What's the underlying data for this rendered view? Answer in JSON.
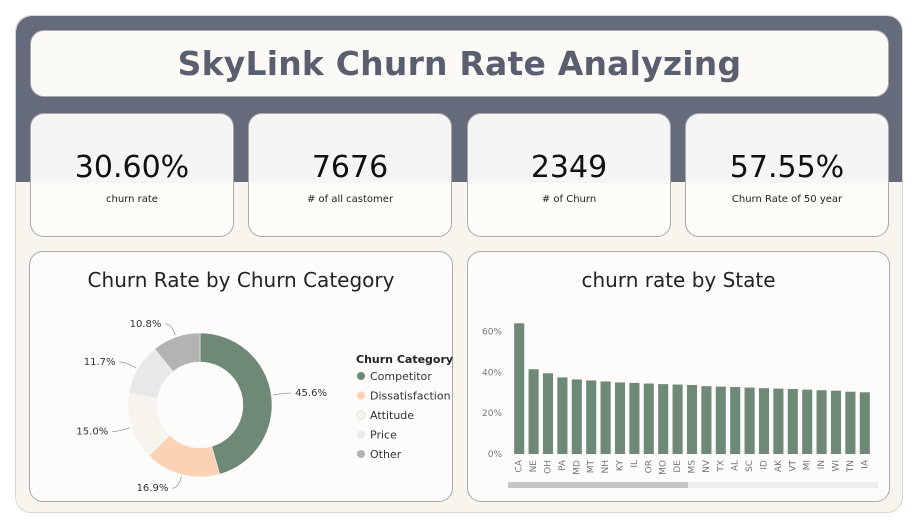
{
  "header": {
    "title": "SkyLink Churn Rate Analyzing"
  },
  "kpis": [
    {
      "value": "30.60%",
      "label": "churn rate"
    },
    {
      "value": "7676",
      "label": "# of all castomer"
    },
    {
      "value": "2349",
      "label": "# of Churn"
    },
    {
      "value": "57.55%",
      "label": "Churn Rate of 50 year"
    }
  ],
  "colors": {
    "band": "#656b7b",
    "competitor": "#6e8a77",
    "dissatisfaction": "#fcd2b5",
    "attitude": "#f7f4ee",
    "price": "#e8e8e8",
    "other": "#b3b3b3",
    "bar": "#6e8a77"
  },
  "chart_data": [
    {
      "type": "pie",
      "title": "Churn Rate by Churn Category",
      "legend_title": "Churn Category",
      "categories": [
        "Competitor",
        "Dissatisfaction",
        "Attitude",
        "Price",
        "Other"
      ],
      "values": [
        45.6,
        16.9,
        15.0,
        11.7,
        10.8
      ],
      "value_labels": [
        "45.6%",
        "16.9%",
        "15.0%",
        "11.7%",
        "10.8%"
      ],
      "legend_placement": "right"
    },
    {
      "type": "bar",
      "title": "churn rate by State",
      "categories": [
        "CA",
        "NE",
        "OH",
        "PA",
        "MD",
        "MT",
        "NH",
        "KY",
        "IL",
        "OR",
        "MO",
        "DE",
        "MS",
        "NV",
        "TX",
        "AL",
        "SC",
        "ID",
        "AK",
        "VT",
        "MI",
        "IN",
        "WI",
        "TN",
        "IA"
      ],
      "values": [
        64,
        41.5,
        39.5,
        37.5,
        36.5,
        36,
        35.5,
        35,
        34.8,
        34.5,
        34.2,
        34,
        33.8,
        33.2,
        33,
        32.8,
        32.5,
        32.2,
        32,
        31.8,
        31.5,
        31.2,
        31,
        30.5,
        30.2
      ],
      "ylim": [
        0,
        70
      ],
      "yticks": [
        "0%",
        "20%",
        "40%",
        "60%"
      ],
      "grid": false
    }
  ]
}
